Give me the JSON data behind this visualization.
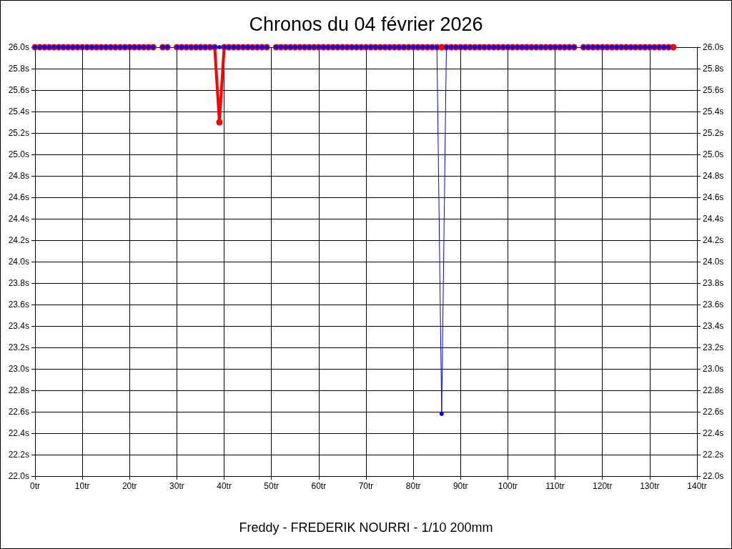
{
  "chart_data": {
    "type": "line",
    "title": "Chronos du 04 février 2026",
    "xlabel": "Freddy - FREDERIK NOURRI - 1/10 200mm",
    "x": [
      0,
      1,
      2,
      3,
      4,
      5,
      6,
      7,
      8,
      9,
      10,
      11,
      12,
      13,
      14,
      15,
      16,
      17,
      18,
      19,
      20,
      21,
      22,
      23,
      24,
      25,
      26,
      27,
      28,
      29,
      30,
      31,
      32,
      33,
      34,
      35,
      36,
      37,
      38,
      39,
      40,
      41,
      42,
      43,
      44,
      45,
      46,
      47,
      48,
      49,
      50,
      51,
      52,
      53,
      54,
      55,
      56,
      57,
      58,
      59,
      60,
      61,
      62,
      63,
      64,
      65,
      66,
      67,
      68,
      69,
      70,
      71,
      72,
      73,
      74,
      75,
      76,
      77,
      78,
      79,
      80,
      81,
      82,
      83,
      84,
      85,
      86,
      87,
      88,
      89,
      90,
      91,
      92,
      93,
      94,
      95,
      96,
      97,
      98,
      99,
      100,
      101,
      102,
      103,
      104,
      105,
      106,
      107,
      108,
      109,
      110,
      111,
      112,
      113,
      114,
      115,
      116,
      117,
      118,
      119,
      120,
      121,
      122,
      123,
      124,
      125,
      126,
      127,
      128,
      129,
      130,
      131,
      132,
      133,
      134,
      135
    ],
    "series": [
      {
        "color": "#ff0000",
        "values": [
          26,
          26,
          26,
          26,
          26,
          26,
          26,
          26,
          26,
          26,
          26,
          26,
          26,
          26,
          26,
          26,
          26,
          26,
          26,
          26,
          26,
          26,
          26,
          26,
          26,
          26,
          null,
          26,
          26,
          null,
          26,
          26,
          26,
          26,
          26,
          26,
          26,
          26,
          26,
          25.3,
          26,
          26,
          26,
          26,
          26,
          26,
          26,
          26,
          26,
          26,
          null,
          26,
          26,
          26,
          26,
          26,
          26,
          26,
          26,
          26,
          26,
          26,
          26,
          26,
          26,
          26,
          26,
          26,
          26,
          26,
          26,
          26,
          26,
          26,
          26,
          26,
          26,
          26,
          26,
          26,
          26,
          26,
          26,
          26,
          26,
          26,
          26,
          26,
          26,
          26,
          26,
          26,
          26,
          26,
          26,
          26,
          26,
          26,
          26,
          26,
          26,
          26,
          26,
          26,
          26,
          26,
          26,
          26,
          26,
          26,
          26,
          26,
          26,
          26,
          26,
          null,
          26,
          26,
          26,
          26,
          26,
          26,
          26,
          26,
          26,
          26,
          26,
          26,
          26,
          26,
          26,
          26,
          26,
          26,
          26,
          26
        ]
      },
      {
        "color": "#0000ff",
        "values": [
          26,
          26,
          26,
          26,
          26,
          26,
          26,
          26,
          26,
          26,
          26,
          26,
          26,
          26,
          26,
          26,
          26,
          26,
          26,
          26,
          26,
          26,
          26,
          26,
          26,
          26,
          null,
          26,
          26,
          null,
          26,
          26,
          26,
          26,
          26,
          26,
          26,
          26,
          26,
          26,
          26,
          26,
          26,
          26,
          26,
          26,
          26,
          26,
          26,
          26,
          null,
          26,
          26,
          26,
          26,
          26,
          26,
          26,
          26,
          26,
          26,
          26,
          26,
          26,
          26,
          26,
          26,
          26,
          26,
          26,
          26,
          26,
          26,
          26,
          26,
          26,
          26,
          26,
          26,
          26,
          26,
          26,
          26,
          26,
          26,
          26,
          22.58,
          26,
          26,
          26,
          26,
          26,
          26,
          26,
          26,
          26,
          26,
          26,
          26,
          26,
          26,
          26,
          26,
          26,
          26,
          26,
          26,
          26,
          26,
          26,
          26,
          26,
          26,
          26,
          26,
          null,
          26,
          26,
          26,
          26,
          26,
          26,
          26,
          26,
          26,
          26,
          26,
          26,
          26,
          26,
          26,
          26,
          26,
          26,
          26,
          null
        ]
      }
    ],
    "xlim": [
      0,
      140
    ],
    "xticks": [
      {
        "value": 0,
        "label": "0tr"
      },
      {
        "value": 10,
        "label": "10tr"
      },
      {
        "value": 20,
        "label": "20tr"
      },
      {
        "value": 30,
        "label": "30tr"
      },
      {
        "value": 40,
        "label": "40tr"
      },
      {
        "value": 50,
        "label": "50tr"
      },
      {
        "value": 60,
        "label": "60tr"
      },
      {
        "value": 70,
        "label": "70tr"
      },
      {
        "value": 80,
        "label": "80tr"
      },
      {
        "value": 90,
        "label": "90tr"
      },
      {
        "value": 100,
        "label": "100tr"
      },
      {
        "value": 110,
        "label": "110tr"
      },
      {
        "value": 120,
        "label": "120tr"
      },
      {
        "value": 130,
        "label": "130tr"
      },
      {
        "value": 140,
        "label": "140tr"
      }
    ],
    "ylim": [
      22,
      26
    ],
    "yticks": [
      {
        "value": 22,
        "label": "22.0s"
      },
      {
        "value": 22.2,
        "label": "22.2s"
      },
      {
        "value": 22.4,
        "label": "22.4s"
      },
      {
        "value": 22.6,
        "label": "22.6s"
      },
      {
        "value": 22.8,
        "label": "22.8s"
      },
      {
        "value": 23,
        "label": "23.0s"
      },
      {
        "value": 23.2,
        "label": "23.2s"
      },
      {
        "value": 23.4,
        "label": "23.4s"
      },
      {
        "value": 23.6,
        "label": "23.6s"
      },
      {
        "value": 23.8,
        "label": "23.8s"
      },
      {
        "value": 24,
        "label": "24.0s"
      },
      {
        "value": 24.2,
        "label": "24.2s"
      },
      {
        "value": 24.4,
        "label": "24.4s"
      },
      {
        "value": 24.6,
        "label": "24.6s"
      },
      {
        "value": 24.8,
        "label": "24.8s"
      },
      {
        "value": 25,
        "label": "25.0s"
      },
      {
        "value": 25.2,
        "label": "25.2s"
      },
      {
        "value": 25.4,
        "label": "25.4s"
      },
      {
        "value": 25.6,
        "label": "25.6s"
      },
      {
        "value": 25.8,
        "label": "25.8s"
      },
      {
        "value": 26,
        "label": "26.0s"
      }
    ],
    "y2lim": [
      22,
      26
    ],
    "y2ticks": [
      {
        "value": 22,
        "label": "22.0s"
      },
      {
        "value": 22.2,
        "label": "22.2s"
      },
      {
        "value": 22.4,
        "label": "22.4s"
      },
      {
        "value": 22.6,
        "label": "22.6s"
      },
      {
        "value": 22.8,
        "label": "22.8s"
      },
      {
        "value": 23,
        "label": "23.0s"
      },
      {
        "value": 23.2,
        "label": "23.2s"
      },
      {
        "value": 23.4,
        "label": "23.4s"
      },
      {
        "value": 23.6,
        "label": "23.6s"
      },
      {
        "value": 23.8,
        "label": "23.8s"
      },
      {
        "value": 24,
        "label": "24.0s"
      },
      {
        "value": 24.2,
        "label": "24.2s"
      },
      {
        "value": 24.4,
        "label": "24.4s"
      },
      {
        "value": 24.6,
        "label": "24.6s"
      },
      {
        "value": 24.8,
        "label": "24.8s"
      },
      {
        "value": 25,
        "label": "25.0s"
      },
      {
        "value": 25.2,
        "label": "25.2s"
      },
      {
        "value": 25.4,
        "label": "25.4s"
      },
      {
        "value": 25.6,
        "label": "25.6s"
      },
      {
        "value": 25.8,
        "label": "25.8s"
      },
      {
        "value": 26,
        "label": "26.0s"
      }
    ],
    "grid": true,
    "marker": "circle",
    "line_style": "solid"
  }
}
